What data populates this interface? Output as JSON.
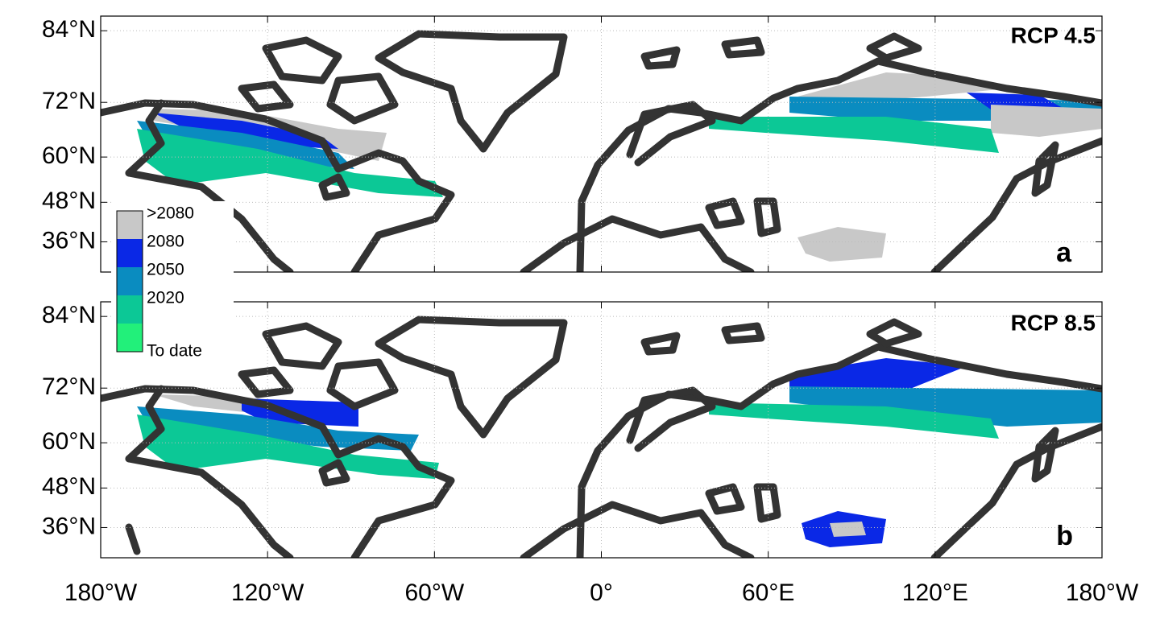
{
  "panels": [
    {
      "label": "RCP 4.5",
      "letter": "a"
    },
    {
      "label": "RCP 8.5",
      "letter": "b"
    }
  ],
  "projection": "miller",
  "lon_range": [
    -180,
    180
  ],
  "lat_range": [
    26,
    86
  ],
  "grid": true,
  "lat_ticks": [
    {
      "value": 84,
      "label": "84°N"
    },
    {
      "value": 72,
      "label": "72°N"
    },
    {
      "value": 60,
      "label": "60°N"
    },
    {
      "value": 48,
      "label": "48°N"
    },
    {
      "value": 36,
      "label": "36°N"
    }
  ],
  "lon_ticks": [
    {
      "value": -180,
      "label": "180°W"
    },
    {
      "value": -120,
      "label": "120°W"
    },
    {
      "value": -60,
      "label": "60°W"
    },
    {
      "value": 0,
      "label": "0°"
    },
    {
      "value": 60,
      "label": "60°E"
    },
    {
      "value": 120,
      "label": "120°E"
    },
    {
      "value": 180,
      "label": "180°W"
    }
  ],
  "legend": [
    {
      "label": ">2080",
      "color": "#c8c8c8"
    },
    {
      "label": "2080",
      "color": "#0a28e6"
    },
    {
      "label": "2050",
      "color": "#0a8cc0"
    },
    {
      "label": "2020",
      "color": "#0cc896"
    },
    {
      "label": "To date",
      "color": "#22f07a"
    }
  ]
}
